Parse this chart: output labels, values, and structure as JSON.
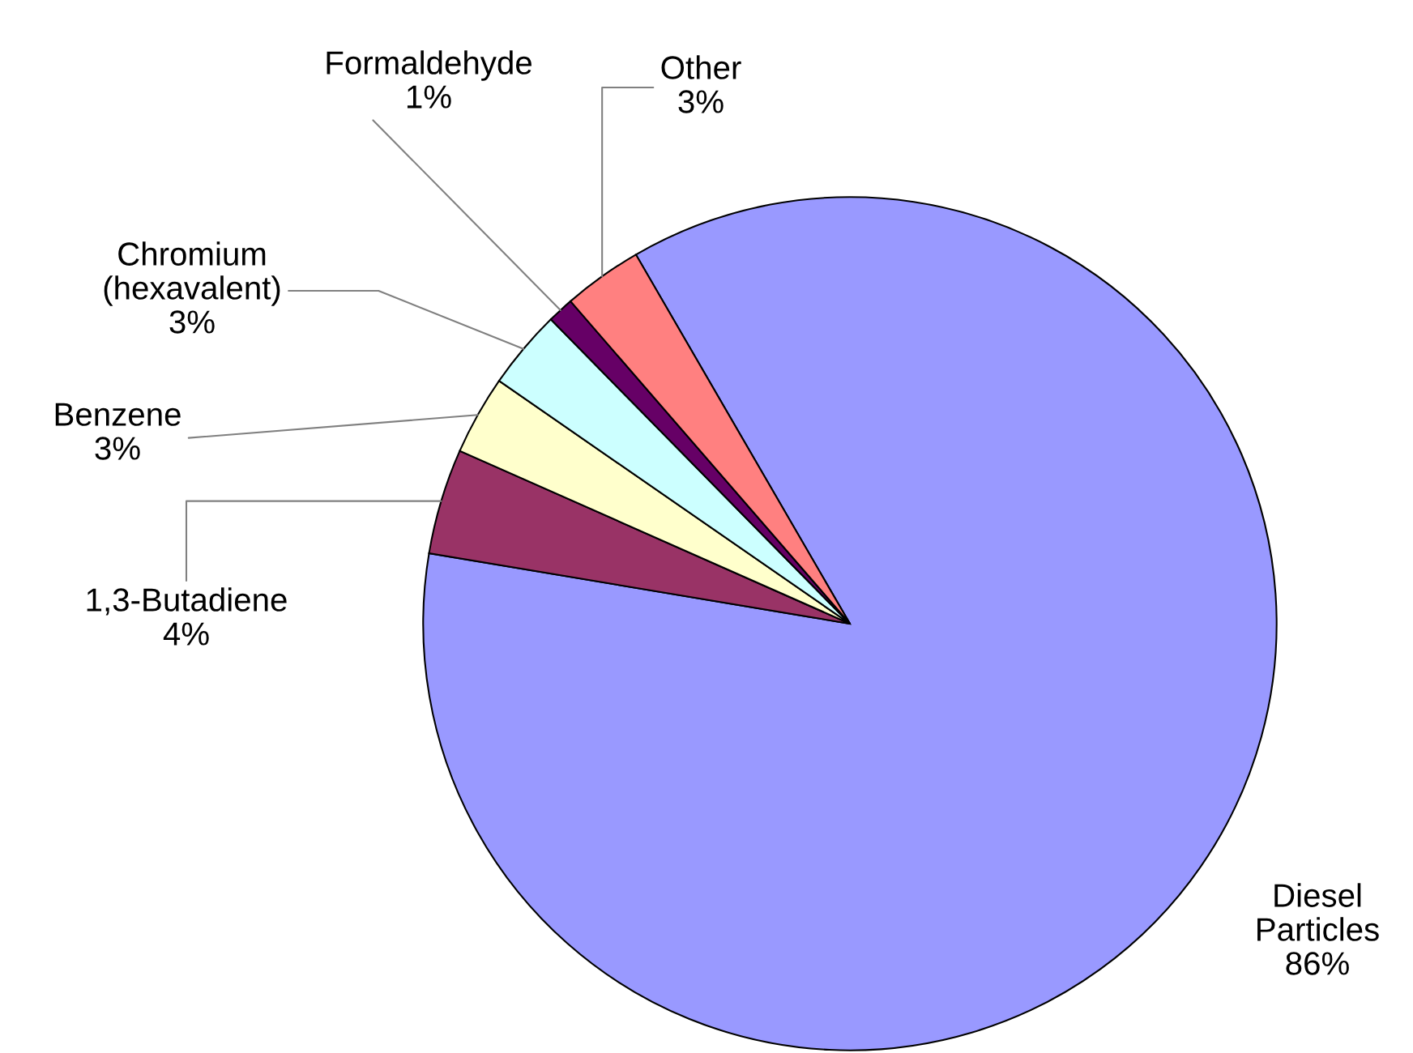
{
  "chart_data": {
    "type": "pie",
    "categories": [
      "Diesel\nParticles",
      "1,3-Butadiene",
      "Benzene",
      "Chromium\n(hexavalent)",
      "Formaldehyde",
      "Other"
    ],
    "values": [
      86,
      4,
      3,
      3,
      1,
      3
    ],
    "colors": [
      "#9999ff",
      "#993366",
      "#ffffcc",
      "#ccffff",
      "#660066",
      "#ff8080"
    ],
    "value_labels": [
      "86%",
      "4%",
      "3%",
      "3%",
      "1%",
      "3%"
    ]
  }
}
